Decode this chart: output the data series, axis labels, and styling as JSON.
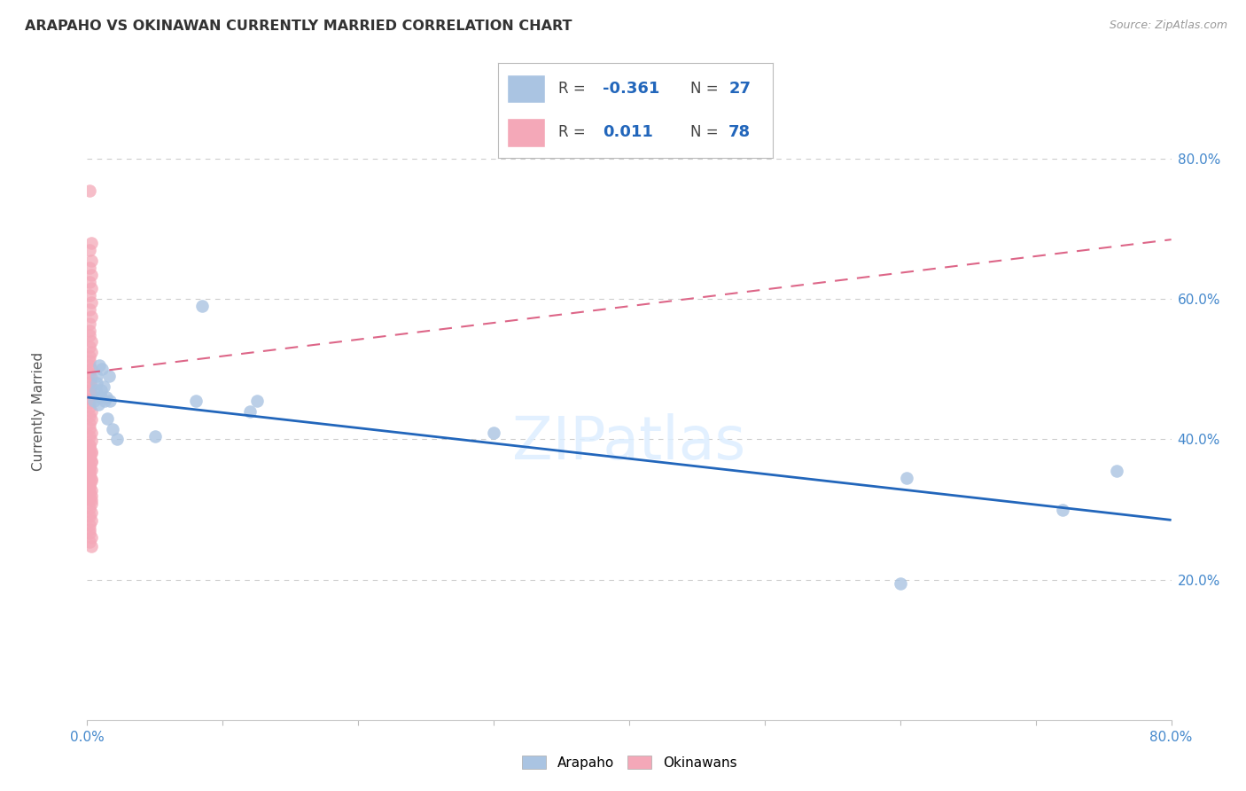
{
  "title": "ARAPAHO VS OKINAWAN CURRENTLY MARRIED CORRELATION CHART",
  "source": "Source: ZipAtlas.com",
  "ylabel": "Currently Married",
  "xlim": [
    0.0,
    0.8
  ],
  "ylim": [
    0.0,
    0.88
  ],
  "arapaho_color": "#aac4e2",
  "okinawan_color": "#f4a8b8",
  "arapaho_line_color": "#2266bb",
  "okinawan_line_color": "#dd6688",
  "arapaho_r": "-0.361",
  "arapaho_n": "27",
  "okinawan_r": "0.011",
  "okinawan_n": "78",
  "arapaho_x": [
    0.005,
    0.006,
    0.007,
    0.007,
    0.008,
    0.009,
    0.01,
    0.01,
    0.011,
    0.012,
    0.013,
    0.014,
    0.015,
    0.016,
    0.017,
    0.019,
    0.022,
    0.05,
    0.08,
    0.085,
    0.12,
    0.125,
    0.3,
    0.6,
    0.605,
    0.72,
    0.76
  ],
  "arapaho_y": [
    0.455,
    0.47,
    0.49,
    0.48,
    0.45,
    0.505,
    0.46,
    0.47,
    0.5,
    0.475,
    0.455,
    0.46,
    0.43,
    0.49,
    0.455,
    0.415,
    0.4,
    0.405,
    0.455,
    0.59,
    0.44,
    0.455,
    0.41,
    0.195,
    0.345,
    0.3,
    0.355
  ],
  "okinawan_x": [
    0.002,
    0.003,
    0.002,
    0.003,
    0.002,
    0.003,
    0.002,
    0.003,
    0.002,
    0.003,
    0.002,
    0.003,
    0.002,
    0.002,
    0.002,
    0.003,
    0.002,
    0.003,
    0.002,
    0.002,
    0.002,
    0.003,
    0.002,
    0.003,
    0.002,
    0.003,
    0.002,
    0.003,
    0.002,
    0.002,
    0.002,
    0.003,
    0.002,
    0.003,
    0.002,
    0.002,
    0.003,
    0.002,
    0.003,
    0.002,
    0.002,
    0.003,
    0.002,
    0.003,
    0.002,
    0.003,
    0.002,
    0.003,
    0.002,
    0.002,
    0.002,
    0.003,
    0.002,
    0.003,
    0.002,
    0.003,
    0.002,
    0.003,
    0.002,
    0.002,
    0.002,
    0.003,
    0.002,
    0.003,
    0.002,
    0.003,
    0.002,
    0.003,
    0.002,
    0.002,
    0.002,
    0.003,
    0.002,
    0.003,
    0.002,
    0.003,
    0.002,
    0.002
  ],
  "okinawan_y": [
    0.755,
    0.68,
    0.67,
    0.655,
    0.645,
    0.635,
    0.625,
    0.615,
    0.605,
    0.595,
    0.585,
    0.575,
    0.565,
    0.555,
    0.548,
    0.54,
    0.532,
    0.525,
    0.518,
    0.512,
    0.506,
    0.5,
    0.494,
    0.488,
    0.482,
    0.476,
    0.47,
    0.464,
    0.458,
    0.452,
    0.446,
    0.44,
    0.434,
    0.428,
    0.422,
    0.416,
    0.41,
    0.404,
    0.398,
    0.392,
    0.386,
    0.38,
    0.374,
    0.368,
    0.362,
    0.356,
    0.35,
    0.344,
    0.338,
    0.332,
    0.326,
    0.32,
    0.314,
    0.308,
    0.302,
    0.296,
    0.29,
    0.284,
    0.278,
    0.272,
    0.266,
    0.26,
    0.254,
    0.248,
    0.39,
    0.383,
    0.376,
    0.369,
    0.362,
    0.355,
    0.348,
    0.341,
    0.334,
    0.327,
    0.32,
    0.313,
    0.375,
    0.36
  ],
  "arapaho_line_x0": 0.0,
  "arapaho_line_x1": 0.8,
  "arapaho_line_y0": 0.46,
  "arapaho_line_y1": 0.285,
  "okinawan_line_x0": 0.0,
  "okinawan_line_x1": 0.8,
  "okinawan_line_y0": 0.495,
  "okinawan_line_y1": 0.685,
  "watermark": "ZIPatlas",
  "background_color": "#ffffff",
  "grid_color": "#cccccc"
}
